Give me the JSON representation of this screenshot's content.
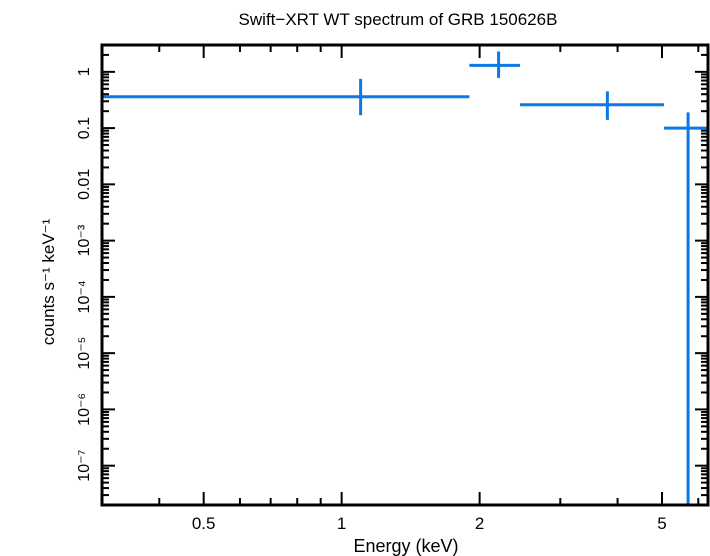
{
  "chart_data": {
    "type": "scatter",
    "title": "Swift−XRT WT spectrum of GRB 150626B",
    "xlabel": "Energy (keV)",
    "ylabel": "counts s⁻¹ keV⁻¹",
    "x_scale": "log",
    "y_scale": "log",
    "xlim": [
      0.3,
      6.3
    ],
    "ylim": [
      2e-08,
      3
    ],
    "x_ticks": [
      {
        "value": 0.5,
        "label": "0.5"
      },
      {
        "value": 1,
        "label": "1"
      },
      {
        "value": 2,
        "label": "2"
      },
      {
        "value": 5,
        "label": "5"
      }
    ],
    "y_ticks": [
      {
        "value": 1,
        "label": "1"
      },
      {
        "value": 0.1,
        "label": "0.1"
      },
      {
        "value": 0.01,
        "label": "0.01"
      },
      {
        "value": 0.001,
        "label": "10⁻³"
      },
      {
        "value": 0.0001,
        "label": "10⁻⁴"
      },
      {
        "value": 1e-05,
        "label": "10⁻⁵"
      },
      {
        "value": 1e-06,
        "label": "10⁻⁶"
      },
      {
        "value": 1e-07,
        "label": "10⁻⁷"
      }
    ],
    "series": [
      {
        "color": "#0a78e6",
        "points": [
          {
            "x": 1.1,
            "xlo": 0.3,
            "xhi": 1.9,
            "y": 0.36,
            "ylo": 0.17,
            "yhi": 0.75
          },
          {
            "x": 2.2,
            "xlo": 1.9,
            "xhi": 2.45,
            "y": 1.3,
            "ylo": 0.78,
            "yhi": 2.3
          },
          {
            "x": 3.8,
            "xlo": 2.45,
            "xhi": 5.05,
            "y": 0.26,
            "ylo": 0.14,
            "yhi": 0.45
          },
          {
            "x": 5.7,
            "xlo": 5.05,
            "xhi": 6.3,
            "y": 0.1,
            "ylo": 2e-08,
            "yhi": 0.19
          }
        ]
      }
    ],
    "grid": false
  }
}
